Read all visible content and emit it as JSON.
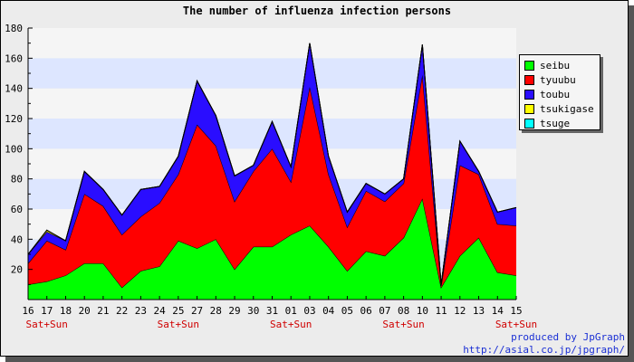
{
  "chart_data": {
    "type": "area",
    "stacked": true,
    "title": "The number of influenza infection persons",
    "x": [
      "16",
      "17",
      "18",
      "20",
      "21",
      "22",
      "23",
      "24",
      "25",
      "27",
      "28",
      "29",
      "30",
      "31",
      "01",
      "03",
      "04",
      "05",
      "06",
      "07",
      "08",
      "10",
      "11",
      "12",
      "13",
      "14",
      "15"
    ],
    "x_sublabels": {
      "1": "Sat+Sun",
      "8": "Sat+Sun",
      "14": "Sat+Sun",
      "20": "Sat+Sun",
      "26": "Sat+Sun"
    },
    "ylim": [
      0,
      180
    ],
    "yticks": [
      20,
      40,
      60,
      80,
      100,
      120,
      140,
      160,
      180
    ],
    "grid": true,
    "legend_position": "right",
    "series": [
      {
        "name": "seibu",
        "color": "#00ff00",
        "values": [
          10,
          12,
          16,
          24,
          24,
          8,
          19,
          22,
          39,
          34,
          40,
          20,
          35,
          35,
          43,
          49,
          35,
          19,
          32,
          29,
          41,
          67,
          8,
          29,
          41,
          18,
          16
        ]
      },
      {
        "name": "tyuubu",
        "color": "#ff0000",
        "values": [
          14,
          27,
          17,
          46,
          38,
          35,
          36,
          42,
          44,
          82,
          62,
          45,
          50,
          65,
          35,
          92,
          48,
          29,
          40,
          36,
          36,
          82,
          1,
          60,
          42,
          32,
          33
        ]
      },
      {
        "name": "toubu",
        "color": "#2a0dff",
        "values": [
          6,
          6,
          6,
          15,
          11,
          13,
          18,
          11,
          12,
          29,
          20,
          17,
          4,
          18,
          10,
          29,
          12,
          10,
          5,
          5,
          3,
          20,
          1,
          16,
          2,
          8,
          12
        ]
      },
      {
        "name": "tsukigase",
        "color": "#ffff00",
        "values": [
          0,
          1,
          0,
          0,
          0,
          0,
          0,
          0,
          0,
          0,
          0,
          0,
          0,
          0,
          0,
          0,
          0,
          0,
          0,
          0,
          0,
          0,
          0,
          0,
          0,
          0,
          0
        ]
      },
      {
        "name": "tsuge",
        "color": "#00ffff",
        "values": [
          0,
          0,
          0,
          0,
          0,
          0,
          0,
          0,
          0,
          0,
          0,
          0,
          0,
          0,
          0,
          0,
          0,
          0,
          0,
          0,
          0,
          0,
          0,
          0,
          0,
          0,
          0
        ]
      }
    ],
    "colors": {
      "band_a": "#dde6ff",
      "band_b": "#f5f5f5",
      "sublabel": "#d00000"
    }
  },
  "credit": {
    "line1": "produced by JpGraph",
    "line2": "http://asial.co.jp/jpgraph/"
  }
}
